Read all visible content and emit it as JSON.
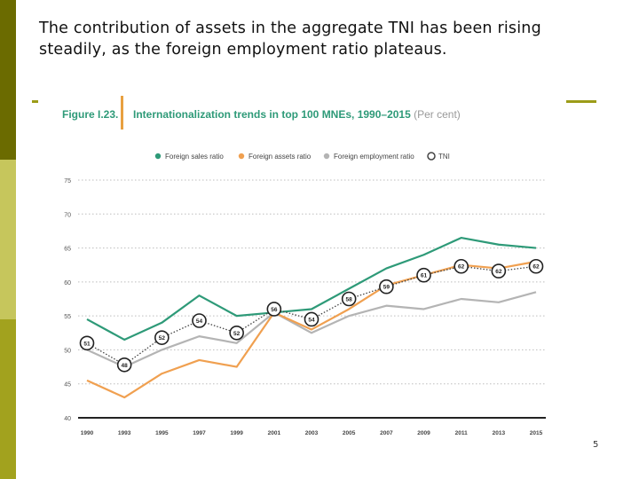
{
  "slide": {
    "caption": "The contribution of assets in the aggregate TNI has been rising steadily, as the foreign employment ratio plateaus.",
    "page_number": "5"
  },
  "colors": {
    "sales": "#2e9a78",
    "assets": "#f0a050",
    "employment": "#b4b4b4",
    "tni": "#444444",
    "accent_dark": "#6b6b00",
    "accent_light": "#c6c65c"
  },
  "chart_data": {
    "type": "line",
    "figure_label": "Figure I.23.",
    "title": "Internationalization trends in top 100 MNEs, 1990–2015",
    "unit": "(Per cent)",
    "categories": [
      "1990",
      "1993",
      "1995",
      "1997",
      "1999",
      "2001",
      "2003",
      "2005",
      "2007",
      "2009",
      "2011",
      "2013",
      "2015"
    ],
    "ylim": [
      40,
      75
    ],
    "yticks": [
      40,
      45,
      50,
      55,
      60,
      65,
      70,
      75
    ],
    "series": [
      {
        "name": "Foreign sales ratio",
        "key": "sales",
        "values": [
          54.5,
          51.5,
          54,
          58,
          55,
          55.5,
          56,
          59,
          62,
          64,
          66.5,
          65.5,
          65
        ]
      },
      {
        "name": "Foreign assets ratio",
        "key": "assets",
        "values": [
          45.5,
          43,
          46.5,
          48.5,
          47.5,
          55.5,
          53,
          56,
          59.5,
          61,
          62.5,
          62,
          63
        ]
      },
      {
        "name": "Foreign employment ratio",
        "key": "employment",
        "values": [
          50,
          47.5,
          50,
          52,
          51,
          55.5,
          52.5,
          55,
          56.5,
          56,
          57.5,
          57,
          58.5
        ]
      },
      {
        "name": "TNI",
        "key": "tni",
        "values": [
          51,
          47.8,
          51.8,
          54.3,
          52.5,
          56,
          54.5,
          57.5,
          59.3,
          61,
          62.3,
          61.6,
          62.3
        ],
        "labels": [
          "51",
          "48",
          "52",
          "54",
          "52",
          "56",
          "54",
          "58",
          "59",
          "61",
          "62",
          "62",
          "62"
        ]
      }
    ],
    "legend_position": "top"
  }
}
